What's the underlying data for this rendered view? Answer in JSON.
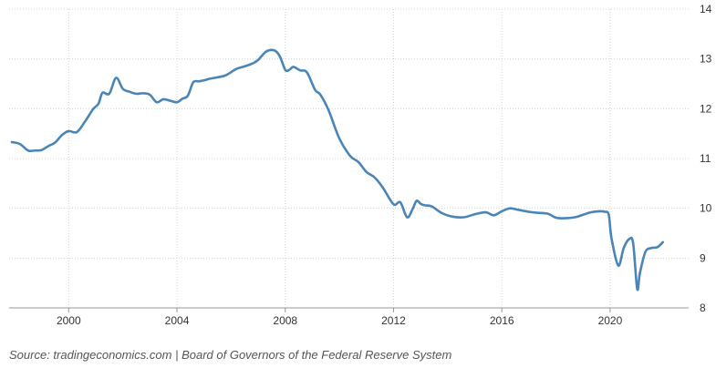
{
  "chart_data": {
    "type": "line",
    "title": "",
    "xlabel": "",
    "ylabel": "",
    "xlim": [
      1997.8,
      2022.9
    ],
    "ylim": [
      8,
      14
    ],
    "x_ticks": [
      2000,
      2004,
      2008,
      2012,
      2016,
      2020
    ],
    "y_ticks": [
      8,
      9,
      10,
      11,
      12,
      13,
      14
    ],
    "grid": true,
    "legend": "none",
    "line_color": "#4a85b8",
    "series": [
      {
        "name": "",
        "x": [
          1997.9,
          1998.2,
          1998.5,
          1998.75,
          1999.0,
          1999.25,
          1999.5,
          1999.75,
          2000.0,
          2000.3,
          2000.6,
          2000.9,
          2001.1,
          2001.25,
          2001.5,
          2001.75,
          2002.0,
          2002.25,
          2002.5,
          2002.75,
          2003.0,
          2003.25,
          2003.5,
          2003.75,
          2004.0,
          2004.2,
          2004.4,
          2004.6,
          2004.8,
          2005.0,
          2005.2,
          2005.5,
          2005.8,
          2006.2,
          2006.5,
          2006.8,
          2007.0,
          2007.3,
          2007.6,
          2007.8,
          2008.0,
          2008.15,
          2008.3,
          2008.55,
          2008.8,
          2009.1,
          2009.3,
          2009.6,
          2010.0,
          2010.4,
          2010.7,
          2011.0,
          2011.3,
          2011.6,
          2012.0,
          2012.25,
          2012.5,
          2012.7,
          2012.85,
          2013.0,
          2013.15,
          2013.4,
          2013.8,
          2014.2,
          2014.6,
          2015.0,
          2015.4,
          2015.7,
          2016.0,
          2016.3,
          2016.6,
          2017.0,
          2017.3,
          2017.7,
          2018.0,
          2018.3,
          2018.7,
          2019.0,
          2019.3,
          2019.6,
          2019.8,
          2019.95,
          2020.05,
          2020.3,
          2020.5,
          2020.7,
          2020.85,
          2021.0,
          2021.1,
          2021.3,
          2021.5,
          2021.75,
          2021.95
        ],
        "values": [
          11.33,
          11.29,
          11.16,
          11.16,
          11.17,
          11.25,
          11.32,
          11.47,
          11.55,
          11.53,
          11.74,
          11.99,
          12.1,
          12.32,
          12.3,
          12.62,
          12.4,
          12.34,
          12.3,
          12.31,
          12.28,
          12.13,
          12.19,
          12.16,
          12.13,
          12.2,
          12.26,
          12.53,
          12.55,
          12.57,
          12.6,
          12.63,
          12.67,
          12.8,
          12.85,
          12.91,
          12.98,
          13.15,
          13.17,
          13.05,
          12.78,
          12.78,
          12.84,
          12.77,
          12.73,
          12.38,
          12.28,
          11.97,
          11.4,
          11.05,
          10.93,
          10.73,
          10.62,
          10.42,
          10.08,
          10.12,
          9.82,
          9.98,
          10.15,
          10.09,
          10.06,
          10.04,
          9.9,
          9.83,
          9.82,
          9.88,
          9.92,
          9.86,
          9.94,
          10.0,
          9.97,
          9.93,
          9.91,
          9.89,
          9.81,
          9.8,
          9.82,
          9.87,
          9.92,
          9.94,
          9.93,
          9.87,
          9.4,
          8.85,
          9.2,
          9.38,
          9.3,
          8.38,
          8.7,
          9.12,
          9.2,
          9.22,
          9.32
        ]
      }
    ]
  },
  "source": "Source: tradingeconomics.com | Board of Governors of the Federal Reserve System"
}
